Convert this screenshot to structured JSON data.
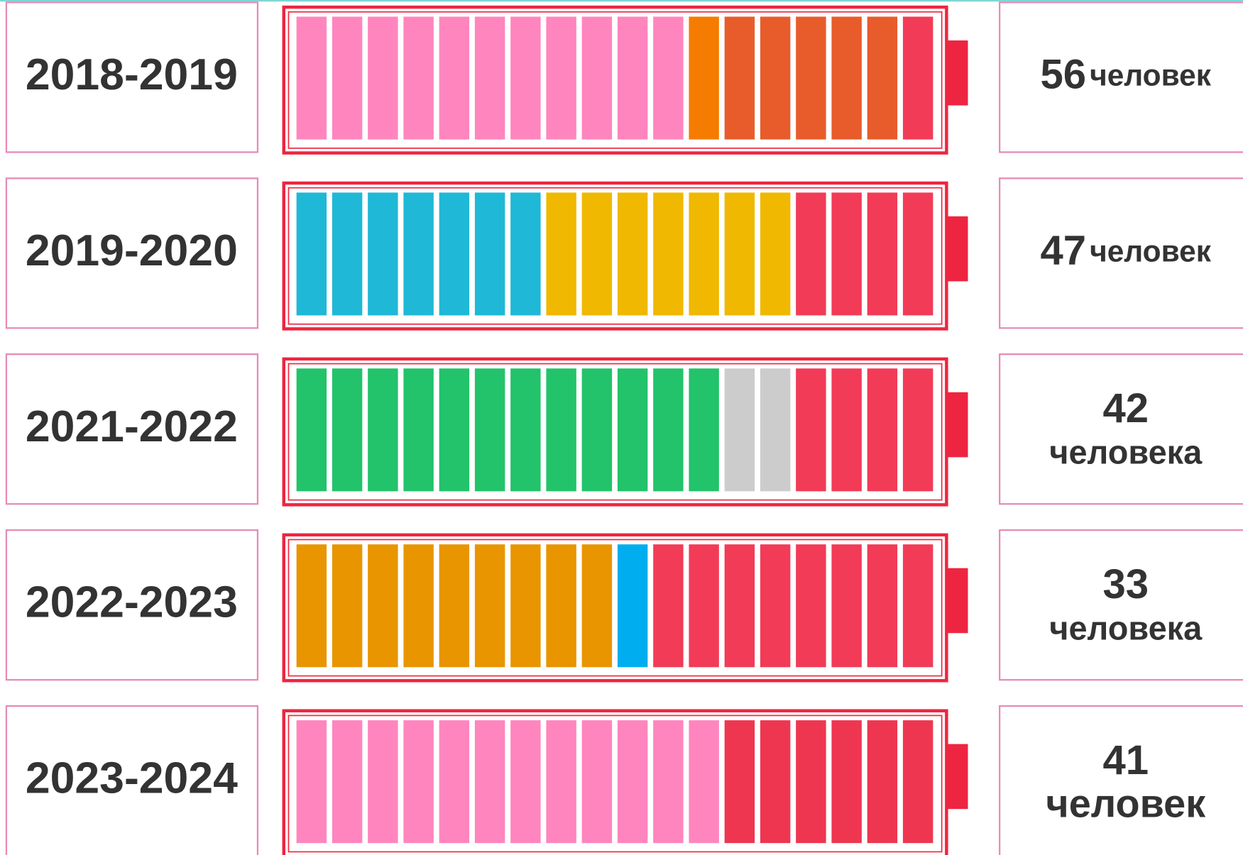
{
  "rows": [
    {
      "year": "2018-2019",
      "count": "56",
      "unit": "человек",
      "wrap": false,
      "segments": [
        "#ff85be",
        "#ff85be",
        "#ff85be",
        "#ff85be",
        "#ff85be",
        "#ff85be",
        "#ff85be",
        "#ff85be",
        "#ff85be",
        "#ff85be",
        "#ff85be",
        "#f57c00",
        "#e85c2c",
        "#e85c2c",
        "#e85c2c",
        "#e85c2c",
        "#e85c2c",
        "#f23b57"
      ]
    },
    {
      "year": "2019-2020",
      "count": "47",
      "unit": "человек",
      "wrap": false,
      "segments": [
        "#1fb8d6",
        "#1fb8d6",
        "#1fb8d6",
        "#1fb8d6",
        "#1fb8d6",
        "#1fb8d6",
        "#1fb8d6",
        "#f0b800",
        "#f0b800",
        "#f0b800",
        "#f0b800",
        "#f0b800",
        "#f0b800",
        "#f0b800",
        "#f23b57",
        "#f23b57",
        "#f23b57",
        "#f23b57"
      ]
    },
    {
      "year": "2021-2022",
      "count": "42",
      "unit": "человека",
      "wrap": true,
      "segments": [
        "#22c36a",
        "#22c36a",
        "#22c36a",
        "#22c36a",
        "#22c36a",
        "#22c36a",
        "#22c36a",
        "#22c36a",
        "#22c36a",
        "#22c36a",
        "#22c36a",
        "#22c36a",
        "#cccccc",
        "#cccccc",
        "#f23b57",
        "#f23b57",
        "#f23b57",
        "#f23b57"
      ]
    },
    {
      "year": "2022-2023",
      "count": "33",
      "unit": "человека",
      "wrap": true,
      "segments": [
        "#e89500",
        "#e89500",
        "#e89500",
        "#e89500",
        "#e89500",
        "#e89500",
        "#e89500",
        "#e89500",
        "#e89500",
        "#00aeef",
        "#f23b57",
        "#f23b57",
        "#f23b57",
        "#f23b57",
        "#f23b57",
        "#f23b57",
        "#f23b57",
        "#f23b57"
      ]
    },
    {
      "year": "2023-2024",
      "count": "41",
      "unit": "человек",
      "wrap": true,
      "segments": [
        "#ff85be",
        "#ff85be",
        "#ff85be",
        "#ff85be",
        "#ff85be",
        "#ff85be",
        "#ff85be",
        "#ff85be",
        "#ff85be",
        "#ff85be",
        "#ff85be",
        "#ff85be",
        "#ef3650",
        "#ef3650",
        "#ef3650",
        "#ef3650",
        "#ef3650",
        "#ef3650"
      ]
    }
  ]
}
